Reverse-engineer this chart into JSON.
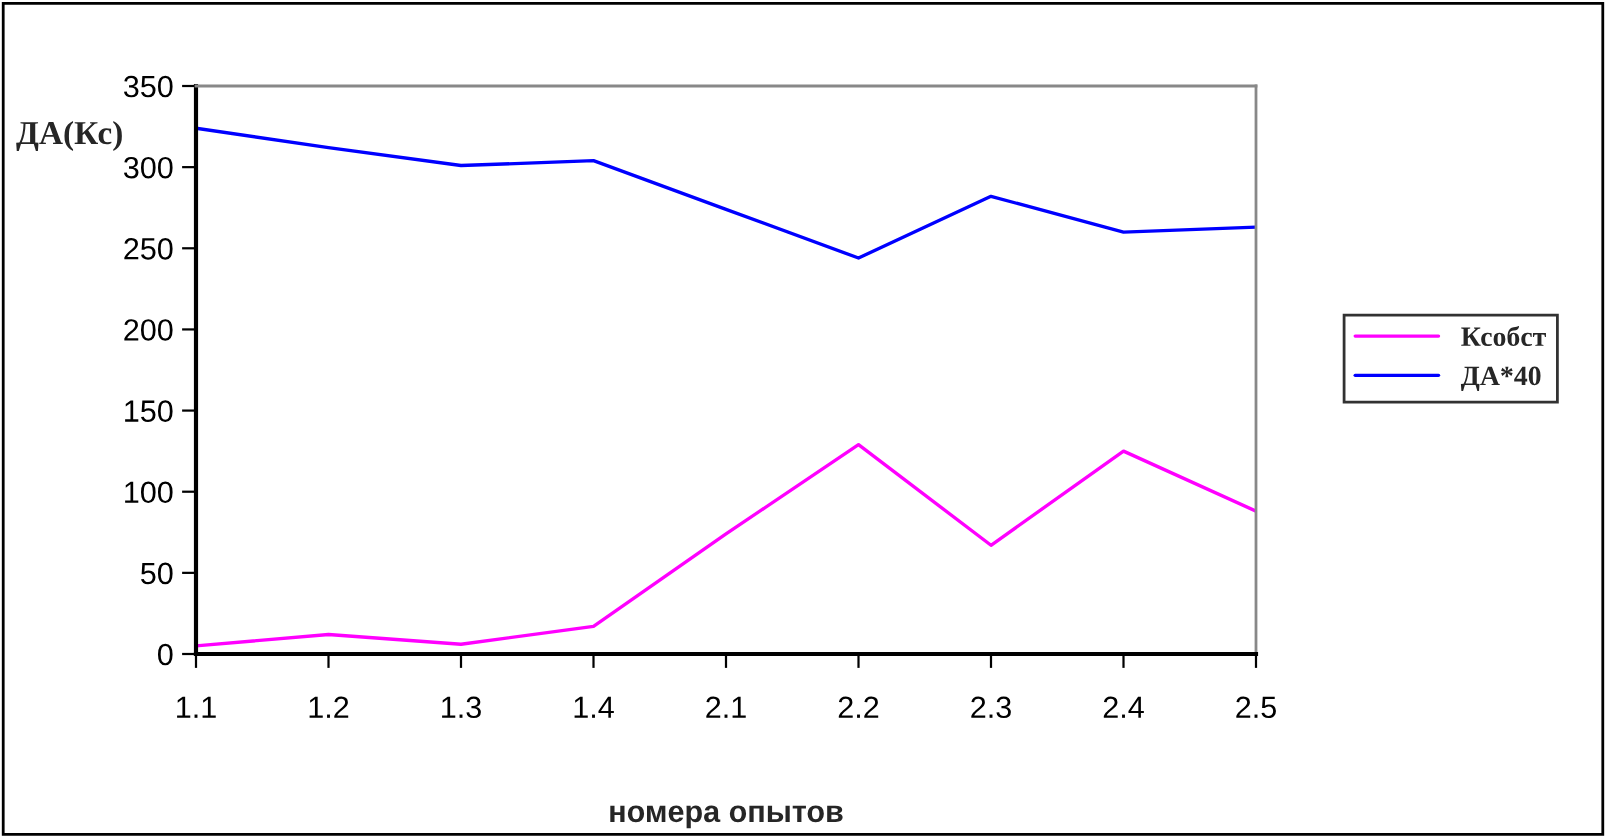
{
  "chart_data": {
    "type": "line",
    "ylabel": "ДА(Кс)",
    "xlabel": "номера опытов",
    "categories": [
      "1.1",
      "1.2",
      "1.3",
      "1.4",
      "2.1",
      "2.2",
      "2.3",
      "2.4",
      "2.5"
    ],
    "series": [
      {
        "name": "Ксобст",
        "color": "#ff00ff",
        "values": [
          5,
          12,
          6,
          17,
          74,
          129,
          67,
          125,
          88
        ]
      },
      {
        "name": "ДА*40",
        "color": "#0000ff",
        "values": [
          324,
          312,
          301,
          304,
          274,
          244,
          282,
          260,
          263
        ]
      }
    ],
    "ylim": [
      0,
      350
    ],
    "yticks": [
      0,
      50,
      100,
      150,
      200,
      250,
      300,
      350
    ],
    "grid": false,
    "legend": "right",
    "marker": "none",
    "line_style": "solid"
  }
}
